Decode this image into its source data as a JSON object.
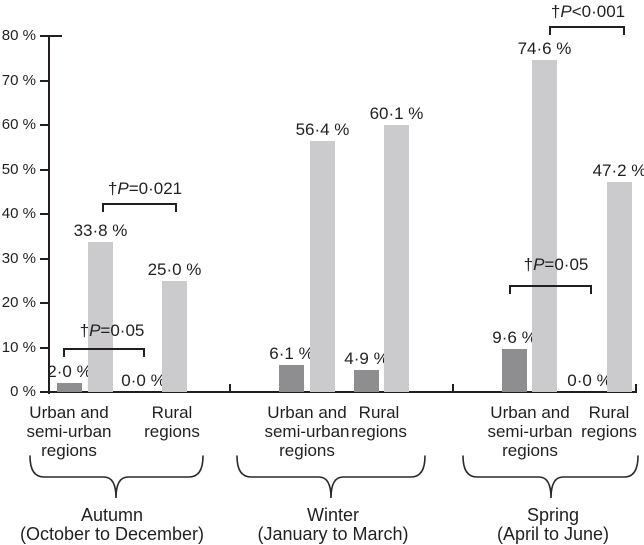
{
  "chart_data": {
    "type": "bar",
    "title": "",
    "xlabel": "",
    "ylabel": "",
    "ylim": [
      0,
      80
    ],
    "grid": false,
    "legend": "none",
    "y_axis_tick_labels": [
      "0 %",
      "10 %",
      "20 %",
      "30 %",
      "40 %",
      "50 %",
      "60 %",
      "70 %",
      "80 %"
    ],
    "colors": {
      "bar_dark": "#8e8e90",
      "bar_light": "#cbcbcd",
      "axis": "#231f20"
    },
    "series_note": "each region shows a dark-grey bar and a light-grey bar, values in percent",
    "groups": [
      {
        "season": "Autumn",
        "season_sub": "(October to December)",
        "regions": [
          {
            "label_lines": [
              "Urban and",
              "semi-urban",
              "regions"
            ],
            "dark_value": 2.0,
            "light_value": 33.8,
            "dark_display": "2·0 %",
            "light_display": "33·8 %"
          },
          {
            "label_lines": [
              "Rural",
              "regions"
            ],
            "dark_value": 0.0,
            "light_value": 25.0,
            "dark_display": "0·0 %",
            "light_display": "25·0 %"
          }
        ]
      },
      {
        "season": "Winter",
        "season_sub": "(January to March)",
        "regions": [
          {
            "label_lines": [
              "Urban and",
              "semi-urban",
              "regions"
            ],
            "dark_value": 6.1,
            "light_value": 56.4,
            "dark_display": "6·1 %",
            "light_display": "56·4 %"
          },
          {
            "label_lines": [
              "Rural",
              "regions"
            ],
            "dark_value": 4.9,
            "light_value": 60.1,
            "dark_display": "4·9 %",
            "light_display": "60·1 %"
          }
        ]
      },
      {
        "season": "Spring",
        "season_sub": "(April to June)",
        "regions": [
          {
            "label_lines": [
              "Urban and",
              "semi-urban",
              "regions"
            ],
            "dark_value": 9.6,
            "light_value": 74.6,
            "dark_display": "9·6 %",
            "light_display": "74·6 %"
          },
          {
            "label_lines": [
              "Rural",
              "regions"
            ],
            "dark_value": 0.0,
            "light_value": 47.2,
            "dark_display": "0·0 %",
            "light_display": "47·2 %"
          }
        ]
      }
    ],
    "p_annotations": [
      {
        "text": "†P=0·05",
        "season": "Autumn",
        "compares": "dark bars"
      },
      {
        "text": "†P=0·021",
        "season": "Autumn",
        "compares": "light bars"
      },
      {
        "text": "†P=0·05",
        "season": "Spring",
        "compares": "dark bars"
      },
      {
        "text": "†P<0·001",
        "season": "Spring",
        "compares": "light bars"
      }
    ]
  }
}
